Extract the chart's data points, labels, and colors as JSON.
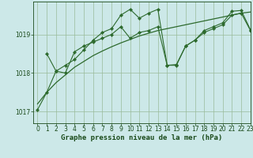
{
  "title": "Graphe pression niveau de la mer (hPa)",
  "x_min": -0.5,
  "x_max": 23,
  "y_min": 1016.7,
  "y_max": 1019.85,
  "yticks": [
    1017,
    1018,
    1019
  ],
  "xticks": [
    0,
    1,
    2,
    3,
    4,
    5,
    6,
    7,
    8,
    9,
    10,
    11,
    12,
    13,
    14,
    15,
    16,
    17,
    18,
    19,
    20,
    21,
    22,
    23
  ],
  "line1_x": [
    0,
    1,
    2,
    3,
    4,
    5,
    6,
    7,
    8,
    9,
    10,
    11,
    12,
    13,
    14,
    15,
    16,
    17,
    18,
    19,
    20,
    21,
    22,
    23
  ],
  "line1_y": [
    1017.05,
    1017.5,
    1018.05,
    1018.0,
    1018.55,
    1018.7,
    1018.8,
    1018.9,
    1019.0,
    1019.2,
    1018.9,
    1019.05,
    1019.1,
    1019.2,
    1018.2,
    1018.2,
    1018.7,
    1018.85,
    1019.05,
    1019.15,
    1019.25,
    1019.5,
    1019.55,
    1019.1
  ],
  "line2_x": [
    0,
    1,
    2,
    3,
    4,
    5,
    6,
    7,
    8,
    9,
    10,
    11,
    12,
    13,
    14,
    15,
    16,
    17,
    18,
    19,
    20,
    21,
    22,
    23
  ],
  "line2_y": [
    1017.2,
    1017.5,
    1017.75,
    1017.95,
    1018.15,
    1018.3,
    1018.45,
    1018.57,
    1018.68,
    1018.78,
    1018.87,
    1018.96,
    1019.03,
    1019.1,
    1019.15,
    1019.2,
    1019.25,
    1019.3,
    1019.35,
    1019.4,
    1019.45,
    1019.5,
    1019.55,
    1019.58
  ],
  "line3_x": [
    1,
    2,
    3,
    4,
    5,
    6,
    7,
    8,
    9,
    10,
    11,
    12,
    13,
    14,
    15,
    16,
    17,
    18,
    19,
    20,
    21,
    22,
    23
  ],
  "line3_y": [
    1018.5,
    1018.05,
    1018.2,
    1018.35,
    1018.6,
    1018.85,
    1019.05,
    1019.15,
    1019.5,
    1019.65,
    1019.42,
    1019.55,
    1019.65,
    1018.2,
    1018.22,
    1018.7,
    1018.85,
    1019.1,
    1019.2,
    1019.3,
    1019.6,
    1019.62,
    1019.12
  ],
  "bg_color": "#cce8e8",
  "line_color": "#2d6a2d",
  "grid_color": "#99bb99",
  "label_color": "#1a4a1a",
  "font_size_label": 6.5,
  "font_size_tick": 5.5
}
